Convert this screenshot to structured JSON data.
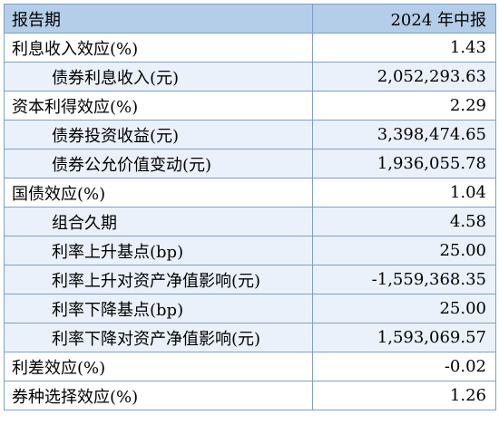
{
  "header": {
    "label": "报告期",
    "value": "2024 年中报"
  },
  "rows": [
    {
      "label": "利息收入效应(%)",
      "value": "1.43",
      "indent": false
    },
    {
      "label": "债券利息收入(元)",
      "value": "2,052,293.63",
      "indent": true
    },
    {
      "label": "资本利得效应(%)",
      "value": "2.29",
      "indent": false
    },
    {
      "label": "债券投资收益(元)",
      "value": "3,398,474.65",
      "indent": true
    },
    {
      "label": "债券公允价值变动(元)",
      "value": "1,936,055.78",
      "indent": true
    },
    {
      "label": "国债效应(%)",
      "value": "1.04",
      "indent": false
    },
    {
      "label": "组合久期",
      "value": "4.58",
      "indent": true
    },
    {
      "label": "利率上升基点(bp)",
      "value": "25.00",
      "indent": true
    },
    {
      "label": "利率上升对资产净值影响(元)",
      "value": "-1,559,368.35",
      "indent": true
    },
    {
      "label": "利率下降基点(bp)",
      "value": "25.00",
      "indent": true
    },
    {
      "label": "利率下降对资产净值影响(元)",
      "value": "1,593,069.57",
      "indent": true
    },
    {
      "label": "利差效应(%)",
      "value": "-0.02",
      "indent": false
    },
    {
      "label": "券种选择效应(%)",
      "value": "1.26",
      "indent": false
    }
  ]
}
